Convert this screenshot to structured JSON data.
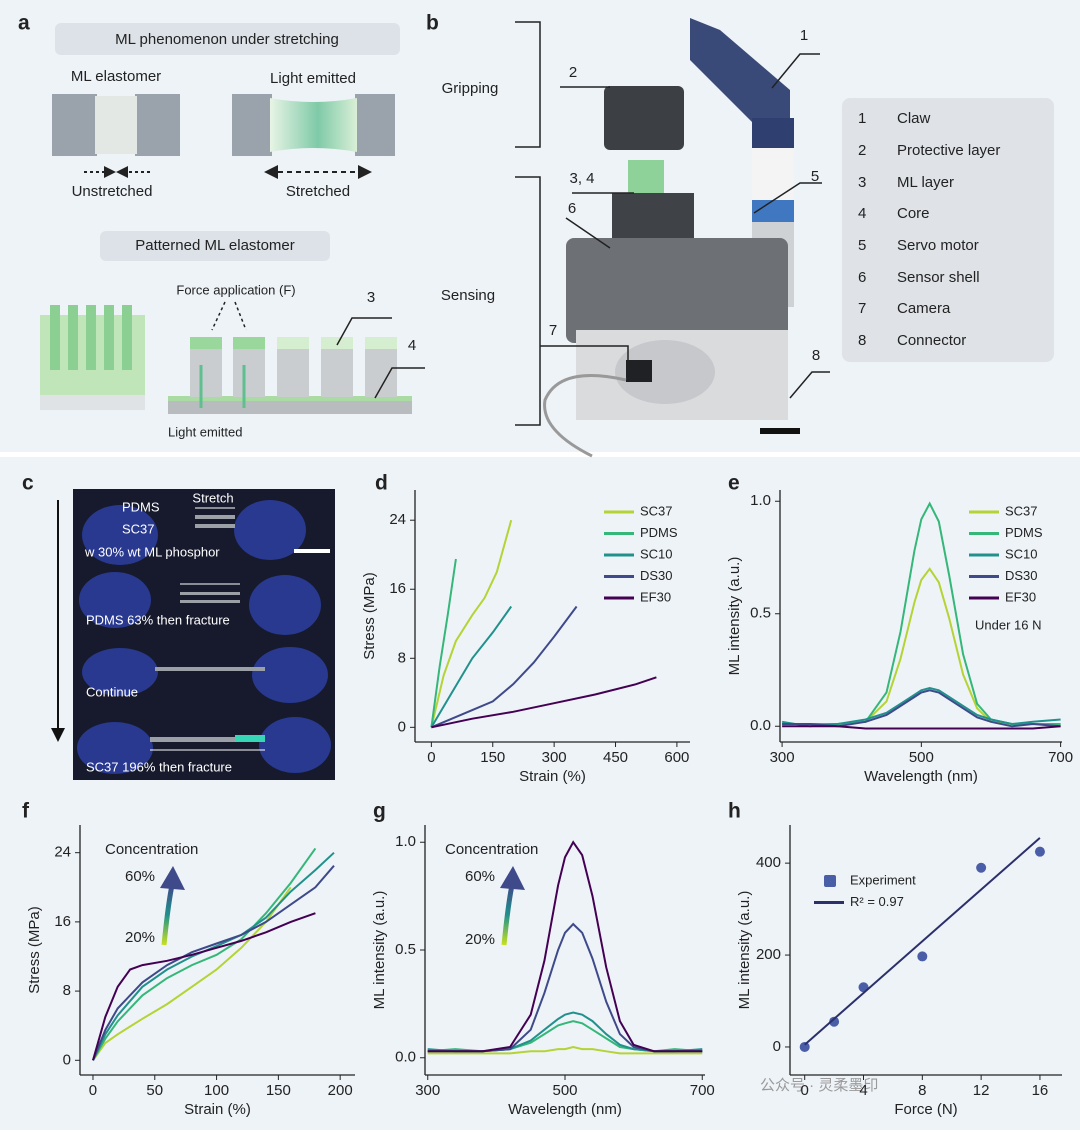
{
  "panel_a": {
    "label": "a",
    "title1": "ML phenomenon under stretching",
    "ml_elastomer": "ML elastomer",
    "light_emitted_top": "Light emitted",
    "unstretched": "Unstretched",
    "stretched": "Stretched",
    "title2": "Patterned ML elastomer",
    "force": "Force application (F)",
    "callout_3": "3",
    "callout_4": "4",
    "light_emitted_bottom": "Light emitted"
  },
  "panel_b": {
    "label": "b",
    "gripping": "Gripping",
    "sensing": "Sensing",
    "callouts": [
      "1",
      "2",
      "3, 4",
      "5",
      "6",
      "7",
      "8"
    ],
    "legend": [
      {
        "num": "1",
        "name": "Claw"
      },
      {
        "num": "2",
        "name": "Protective layer"
      },
      {
        "num": "3",
        "name": "ML layer"
      },
      {
        "num": "4",
        "name": "Core"
      },
      {
        "num": "5",
        "name": "Servo motor"
      },
      {
        "num": "6",
        "name": "Sensor shell"
      },
      {
        "num": "7",
        "name": "Camera"
      },
      {
        "num": "8",
        "name": "Connector"
      }
    ]
  },
  "panel_c": {
    "label": "c",
    "pdms": "PDMS",
    "stretch": "Stretch",
    "sc37": "SC37",
    "phosphor": "w 30% wt ML phosphor",
    "pdms_fracture": "PDMS   63% then fracture",
    "continue": "Continue",
    "sc37_fracture": "SC37   196% then fracture"
  },
  "chart_data": [
    {
      "panel": "d",
      "type": "line",
      "xlabel": "Strain (%)",
      "ylabel": "Stress (MPa)",
      "xlim": [
        -40,
        632
      ],
      "ylim": [
        -1.7,
        27.5
      ],
      "xticks": [
        0,
        150,
        300,
        450,
        600
      ],
      "yticks": [
        0,
        8,
        16,
        24
      ],
      "legend": "upper right",
      "series": [
        {
          "name": "SC37",
          "color": "#b5d334",
          "x": [
            0,
            30,
            60,
            100,
            130,
            160,
            195
          ],
          "values": [
            0,
            6,
            10,
            13,
            15,
            18,
            24
          ]
        },
        {
          "name": "PDMS",
          "color": "#35b779",
          "x": [
            0,
            20,
            40,
            60
          ],
          "values": [
            0,
            7,
            13,
            19.5
          ]
        },
        {
          "name": "SC10",
          "color": "#21918c",
          "x": [
            0,
            50,
            100,
            150,
            195
          ],
          "values": [
            0,
            4,
            8,
            11,
            14
          ]
        },
        {
          "name": "DS30",
          "color": "#3e4a89",
          "x": [
            0,
            100,
            150,
            200,
            250,
            300,
            355
          ],
          "values": [
            0,
            2,
            3,
            5,
            7.5,
            10.5,
            14
          ]
        },
        {
          "name": "EF30",
          "color": "#440154",
          "x": [
            0,
            100,
            200,
            300,
            400,
            500,
            550
          ],
          "values": [
            0,
            1,
            1.8,
            2.8,
            3.8,
            5,
            5.8
          ]
        }
      ]
    },
    {
      "panel": "e",
      "type": "line",
      "xlabel": "Wavelength (nm)",
      "ylabel": "ML intensity (a.u.)",
      "xlim": [
        297,
        702
      ],
      "ylim": [
        -0.07,
        1.05
      ],
      "xticks": [
        300,
        500,
        700
      ],
      "yticks": [
        {
          "value": 0,
          "label": "0.0"
        },
        {
          "value": 0.5,
          "label": "0.5"
        },
        {
          "value": 1,
          "label": "1.0"
        }
      ],
      "legend": "upper right",
      "annotations": [
        "Under 16 N"
      ],
      "series": [
        {
          "name": "SC37",
          "color": "#b5d334",
          "x": [
            300,
            340,
            380,
            420,
            450,
            470,
            490,
            500,
            512,
            525,
            540,
            560,
            580,
            600,
            630,
            660,
            700
          ],
          "values": [
            0.01,
            0.01,
            0.01,
            0.02,
            0.11,
            0.3,
            0.55,
            0.65,
            0.7,
            0.64,
            0.48,
            0.23,
            0.08,
            0.02,
            0.01,
            0.01,
            0.01
          ]
        },
        {
          "name": "PDMS",
          "color": "#35b779",
          "x": [
            300,
            340,
            380,
            420,
            450,
            470,
            490,
            500,
            512,
            525,
            540,
            560,
            580,
            600,
            630,
            660,
            700
          ],
          "values": [
            0.01,
            0.01,
            0.01,
            0.02,
            0.15,
            0.42,
            0.78,
            0.92,
            0.99,
            0.91,
            0.67,
            0.32,
            0.1,
            0.03,
            0.01,
            0.01,
            0.01
          ]
        },
        {
          "name": "SC10",
          "color": "#21918c",
          "x": [
            300,
            340,
            380,
            420,
            450,
            470,
            490,
            500,
            512,
            525,
            540,
            560,
            580,
            600,
            630,
            660,
            700
          ],
          "values": [
            0.02,
            0,
            0.01,
            0.03,
            0.06,
            0.1,
            0.14,
            0.16,
            0.17,
            0.16,
            0.13,
            0.09,
            0.05,
            0.03,
            0.01,
            0.02,
            0.03
          ]
        },
        {
          "name": "DS30",
          "color": "#3e4a89",
          "x": [
            300,
            340,
            380,
            420,
            450,
            470,
            490,
            500,
            512,
            525,
            540,
            560,
            580,
            600,
            630,
            660,
            700
          ],
          "values": [
            0.01,
            0.01,
            0,
            0.02,
            0.05,
            0.09,
            0.13,
            0.15,
            0.16,
            0.15,
            0.12,
            0.08,
            0.04,
            0.02,
            0,
            0.01,
            0
          ]
        },
        {
          "name": "EF30",
          "color": "#440154",
          "x": [
            300,
            340,
            380,
            420,
            450,
            470,
            490,
            500,
            512,
            525,
            540,
            560,
            580,
            600,
            630,
            660,
            700
          ],
          "values": [
            0,
            0,
            0,
            -0.01,
            -0.01,
            -0.01,
            -0.01,
            -0.01,
            -0.01,
            -0.01,
            -0.01,
            -0.01,
            -0.01,
            -0.01,
            -0.01,
            -0.01,
            0
          ]
        }
      ]
    },
    {
      "panel": "f",
      "type": "line",
      "xlabel": "Strain (%)",
      "ylabel": "Stress (MPa)",
      "xlim": [
        -10.5,
        212
      ],
      "ylim": [
        -1.7,
        27.2
      ],
      "xticks": [
        0,
        50,
        100,
        150,
        200
      ],
      "yticks": [
        0,
        8,
        16,
        24
      ],
      "annotations": [
        "Concentration",
        "60%",
        "20%"
      ],
      "series": [
        {
          "color": "#b5d334",
          "x": [
            0,
            10,
            20,
            40,
            60,
            80,
            100,
            120,
            140,
            160
          ],
          "values": [
            0,
            2,
            3,
            4.8,
            6.5,
            8.5,
            10.5,
            13,
            16,
            20
          ]
        },
        {
          "color": "#35b779",
          "x": [
            0,
            10,
            20,
            40,
            60,
            80,
            100,
            120,
            140,
            160,
            180
          ],
          "values": [
            0,
            2.5,
            4.5,
            7.5,
            9.5,
            11,
            12.2,
            14,
            17,
            20.5,
            24.5
          ]
        },
        {
          "color": "#21918c",
          "x": [
            0,
            10,
            20,
            40,
            60,
            80,
            100,
            120,
            140,
            160,
            180,
            195
          ],
          "values": [
            0,
            3,
            5.2,
            8.5,
            10.5,
            12,
            13.2,
            14.5,
            16.5,
            19.5,
            22,
            24
          ]
        },
        {
          "color": "#3e4a89",
          "x": [
            0,
            10,
            20,
            40,
            60,
            80,
            100,
            120,
            140,
            160,
            180,
            195
          ],
          "values": [
            0,
            3.5,
            6,
            9,
            11,
            12.5,
            13.5,
            14.5,
            16,
            18,
            20,
            22.5
          ]
        },
        {
          "color": "#440154",
          "x": [
            0,
            10,
            20,
            30,
            40,
            60,
            80,
            100,
            120,
            140,
            160,
            180
          ],
          "values": [
            0,
            5,
            8.5,
            10.5,
            11,
            11.5,
            12.2,
            13,
            13.8,
            14.8,
            16,
            17
          ]
        }
      ]
    },
    {
      "panel": "g",
      "type": "line",
      "xlabel": "Wavelength (nm)",
      "ylabel": "ML intensity (a.u.)",
      "xlim": [
        296,
        704
      ],
      "ylim": [
        -0.08,
        1.08
      ],
      "xticks": [
        300,
        500,
        700
      ],
      "yticks": [
        {
          "value": 0,
          "label": "0.0"
        },
        {
          "value": 0.5,
          "label": "0.5"
        },
        {
          "value": 1,
          "label": "1.0"
        }
      ],
      "annotations": [
        "Concentration",
        "60%",
        "20%"
      ],
      "series": [
        {
          "color": "#b5d334",
          "x": [
            300,
            340,
            380,
            420,
            450,
            470,
            490,
            500,
            512,
            525,
            540,
            560,
            580,
            600,
            630,
            660,
            700
          ],
          "values": [
            0.02,
            0.02,
            0.02,
            0.02,
            0.03,
            0.03,
            0.04,
            0.04,
            0.05,
            0.04,
            0.04,
            0.03,
            0.02,
            0.02,
            0.02,
            0.02,
            0.02
          ]
        },
        {
          "color": "#35b779",
          "x": [
            300,
            340,
            380,
            420,
            450,
            470,
            490,
            500,
            512,
            525,
            540,
            560,
            580,
            600,
            630,
            660,
            700
          ],
          "values": [
            0.03,
            0.04,
            0.03,
            0.04,
            0.07,
            0.11,
            0.15,
            0.16,
            0.17,
            0.16,
            0.13,
            0.09,
            0.05,
            0.04,
            0.03,
            0.04,
            0.03
          ]
        },
        {
          "color": "#21918c",
          "x": [
            300,
            340,
            380,
            420,
            450,
            470,
            490,
            500,
            512,
            525,
            540,
            560,
            580,
            600,
            630,
            660,
            700
          ],
          "values": [
            0.04,
            0.03,
            0.03,
            0.04,
            0.08,
            0.13,
            0.18,
            0.2,
            0.21,
            0.2,
            0.17,
            0.11,
            0.06,
            0.04,
            0.03,
            0.03,
            0.04
          ]
        },
        {
          "color": "#3e4a89",
          "x": [
            300,
            340,
            380,
            420,
            450,
            470,
            490,
            500,
            512,
            525,
            540,
            560,
            580,
            600,
            630,
            660,
            700
          ],
          "values": [
            0.03,
            0.03,
            0.03,
            0.04,
            0.13,
            0.3,
            0.5,
            0.58,
            0.62,
            0.58,
            0.46,
            0.26,
            0.11,
            0.05,
            0.03,
            0.03,
            0.03
          ]
        },
        {
          "color": "#440154",
          "x": [
            300,
            340,
            380,
            420,
            450,
            470,
            490,
            500,
            512,
            525,
            540,
            560,
            580,
            600,
            630,
            660,
            700
          ],
          "values": [
            0.03,
            0.03,
            0.03,
            0.05,
            0.2,
            0.45,
            0.8,
            0.93,
            1,
            0.94,
            0.75,
            0.42,
            0.17,
            0.06,
            0.03,
            0.03,
            0.03
          ]
        }
      ]
    },
    {
      "panel": "h",
      "type": "scatter",
      "xlabel": "Force (N)",
      "ylabel": "ML intensity (a.u.)",
      "xlim": [
        -1,
        17.5
      ],
      "ylim": [
        -61,
        483
      ],
      "xticks": [
        0,
        4,
        8,
        12,
        16
      ],
      "yticks": [
        0,
        200,
        400
      ],
      "legend": "upper left",
      "series": [
        {
          "name": "Experiment",
          "type": "scatter",
          "color": "#4a5ea8",
          "x": [
            0,
            2,
            4,
            8,
            12,
            16
          ],
          "values": [
            0,
            55,
            130,
            197,
            390,
            425
          ]
        },
        {
          "name": "R² = 0.97",
          "type": "line",
          "color": "#2b2f6b",
          "x": [
            0,
            16
          ],
          "values": [
            5,
            455
          ]
        }
      ]
    }
  ],
  "watermark": "公众号 · 灵柔墨印"
}
